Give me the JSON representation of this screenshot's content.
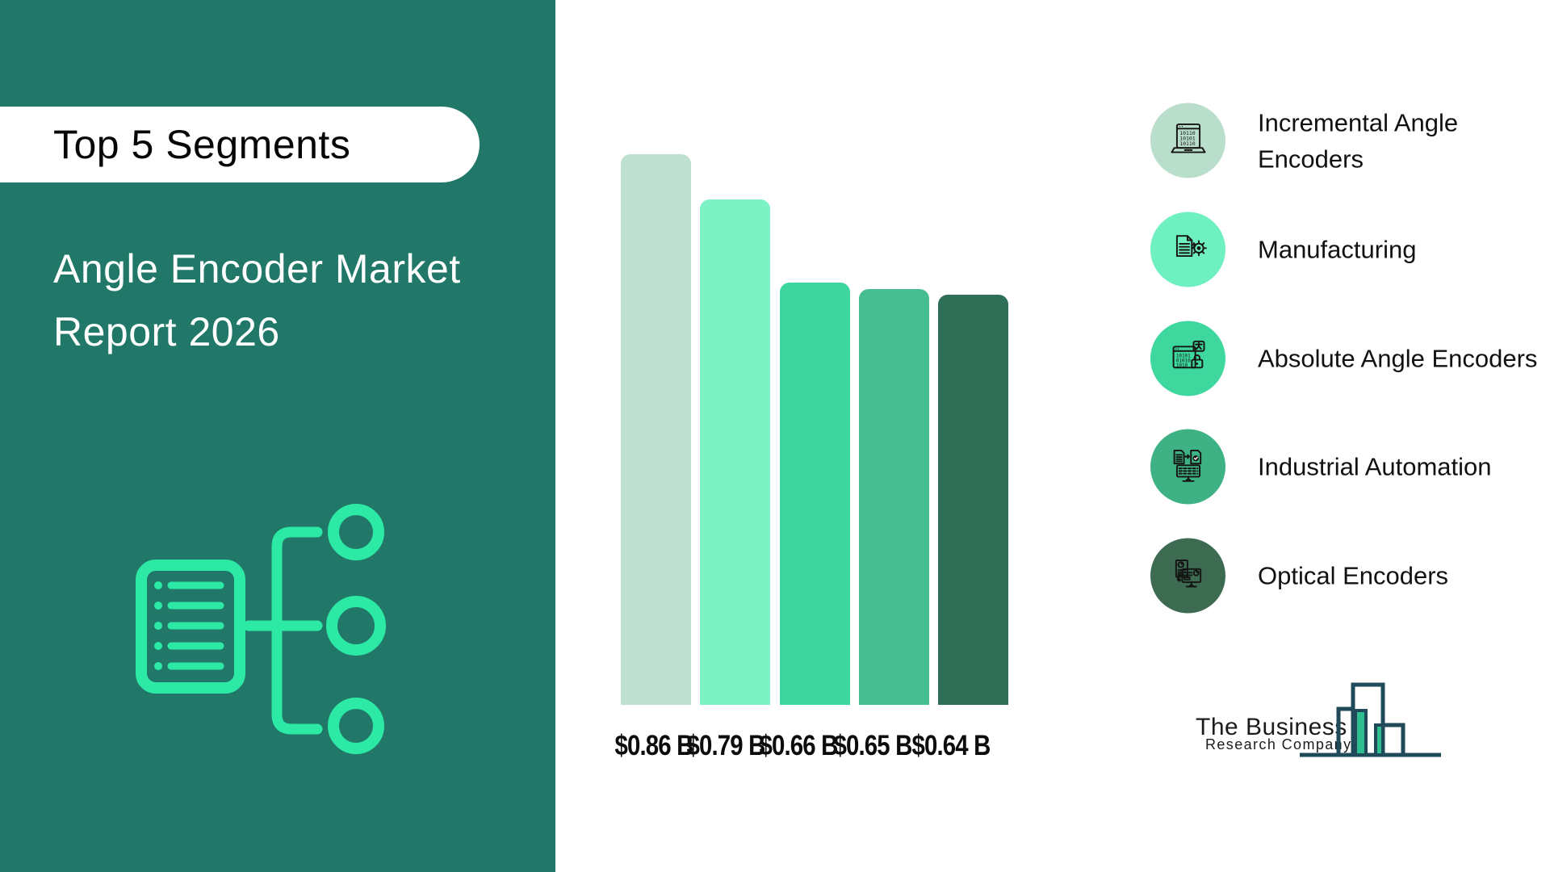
{
  "left_panel": {
    "badge_label": "Top 5 Segments",
    "title_lines": [
      "Angle Encoder Market",
      "Report 2026"
    ]
  },
  "chart_data": {
    "type": "bar",
    "title": "Top 5 Segments",
    "subtitle": "Angle Encoder Market Report 2026",
    "categories": [
      "Incremental Angle Encoders",
      "Manufacturing",
      "Absolute Angle Encoders",
      "Industrial Automation",
      "Optical Encoders"
    ],
    "values": [
      0.86,
      0.79,
      0.66,
      0.65,
      0.64
    ],
    "value_labels": [
      "$0.86 B",
      "$0.79 B",
      "$0.66 B",
      "$0.65 B",
      "$0.64 B"
    ],
    "unit": "USD billions",
    "bar_colors": [
      "#BEE0D1",
      "#7DF2C5",
      "#3DD69E",
      "#47BD92",
      "#2F6E57"
    ],
    "xlabel": "",
    "ylabel": "",
    "ylim": [
      0,
      0.95
    ],
    "grid": false,
    "legend_position": "right"
  },
  "legend": {
    "items": [
      {
        "label": "Incremental Angle Encoders",
        "color": "#B9DECB",
        "icon": "laptop-binary-icon"
      },
      {
        "label": "Manufacturing",
        "color": "#6FF0C0",
        "icon": "document-gear-icon"
      },
      {
        "label": "Absolute Angle Encoders",
        "color": "#3ED89E",
        "icon": "binary-window-lock-icon"
      },
      {
        "label": "Industrial Automation",
        "color": "#3FB285",
        "icon": "document-transfer-monitor-icon"
      },
      {
        "label": "Optical Encoders",
        "color": "#3C6B52",
        "icon": "report-monitor-icon"
      }
    ]
  },
  "logo": {
    "name_line1": "The Business",
    "name_line2": "Research Company"
  },
  "colors": {
    "panel_teal": "#217868",
    "accent_mint": "#2CE9A6",
    "logo_outline": "#20495A",
    "logo_fill": "#2FBE8F"
  }
}
